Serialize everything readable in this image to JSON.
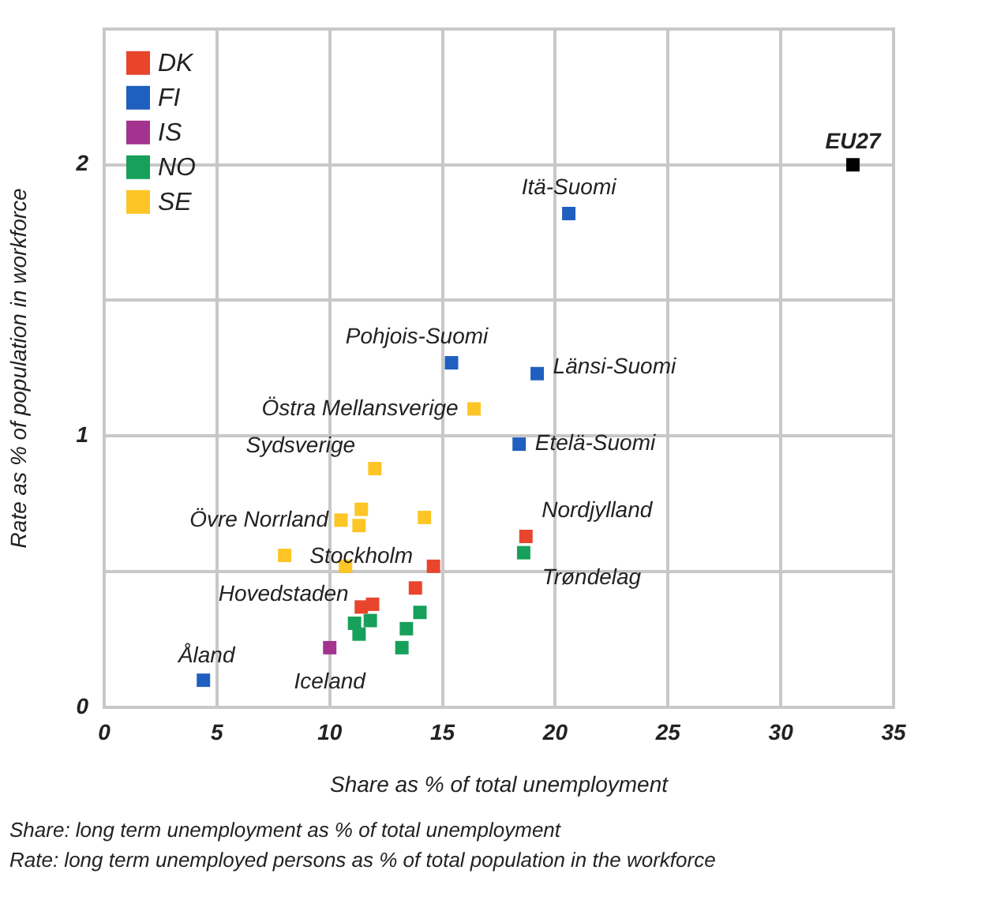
{
  "chart_data": {
    "type": "scatter",
    "xlabel": "Share as % of total unemployment",
    "ylabel": "Rate as % of population in workforce",
    "xlim": [
      0,
      35
    ],
    "xticks": [
      0,
      5,
      10,
      15,
      20,
      25,
      30,
      35
    ],
    "ylim": [
      0,
      2.5
    ],
    "yticks": [
      0,
      {
        "value": 0.5,
        "label": null
      },
      1,
      {
        "value": 1.5,
        "label": null
      },
      2
    ],
    "grid": true,
    "legend": "top left",
    "marker": "square",
    "series": [
      {
        "name": "DK",
        "color": "#e8452c",
        "x": [
          18.7,
          14.6,
          13.8,
          11.4,
          11.9
        ],
        "values": [
          0.63,
          0.52,
          0.44,
          0.37,
          0.38
        ]
      },
      {
        "name": "FI",
        "color": "#1f5fbf",
        "x": [
          20.6,
          19.2,
          15.4,
          18.4,
          4.4
        ],
        "values": [
          1.82,
          1.23,
          1.27,
          0.97,
          0.1
        ]
      },
      {
        "name": "IS",
        "color": "#a3338f",
        "x": [
          10.0
        ],
        "values": [
          0.22
        ]
      },
      {
        "name": "NO",
        "color": "#17a05a",
        "x": [
          18.6,
          14.0,
          13.4,
          13.2,
          11.3,
          11.8,
          11.1
        ],
        "values": [
          0.57,
          0.35,
          0.29,
          0.22,
          0.27,
          0.32,
          0.31
        ]
      },
      {
        "name": "SE",
        "color": "#fdc526",
        "x": [
          16.4,
          12.0,
          11.4,
          10.5,
          11.3,
          14.2,
          8.0,
          10.7
        ],
        "values": [
          1.1,
          0.88,
          0.73,
          0.69,
          0.67,
          0.7,
          0.56,
          0.52
        ]
      },
      {
        "color": "#000000",
        "x": [
          33.2
        ],
        "values": [
          2.0
        ]
      }
    ],
    "annotations": [
      {
        "text": "EU27",
        "x": 33.2,
        "y": 2.0
      },
      {
        "text": "Itä-Suomi",
        "x": 20.6,
        "y": 1.82
      },
      {
        "text": "Länsi-Suomi",
        "x": 19.2,
        "y": 1.23
      },
      {
        "text": "Pohjois-Suomi",
        "x": 15.4,
        "y": 1.27
      },
      {
        "text": "Östra Mellansverige",
        "x": 16.4,
        "y": 1.1
      },
      {
        "text": "Etelä-Suomi",
        "x": 18.4,
        "y": 0.97
      },
      {
        "text": "Sydsverige",
        "x": 12.0,
        "y": 0.88
      },
      {
        "text": "Övre Norrland",
        "x": 10.5,
        "y": 0.69
      },
      {
        "text": "Nordjylland",
        "x": 18.7,
        "y": 0.63
      },
      {
        "text": "Stockholm",
        "x": 10.7,
        "y": 0.52
      },
      {
        "text": "Trøndelag",
        "x": 18.6,
        "y": 0.57
      },
      {
        "text": "Hovedstaden",
        "x": 11.4,
        "y": 0.37
      },
      {
        "text": "Åland",
        "x": 4.4,
        "y": 0.1
      },
      {
        "text": "Iceland",
        "x": 10.0,
        "y": 0.22
      },
      "Share: long term unemployment as % of total unemployment",
      "Rate: long term unemployed persons as % of total population in the workforce"
    ]
  }
}
